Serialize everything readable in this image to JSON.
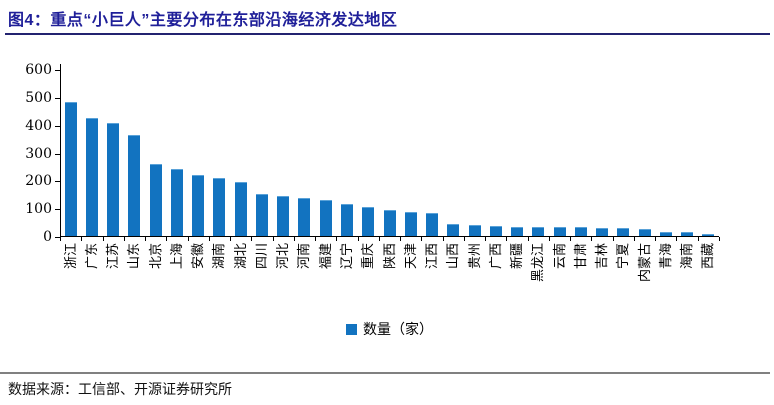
{
  "header": {
    "title": "图4：重点“小巨人”主要分布在东部沿海经济发达地区",
    "accent_color": "#1f1f99"
  },
  "chart_data": {
    "type": "bar",
    "title": "重点“小巨人”主要分布在东部沿海经济发达地区",
    "categories": [
      "浙江",
      "广东",
      "江苏",
      "山东",
      "北京",
      "上海",
      "安徽",
      "湖南",
      "湖北",
      "四川",
      "河北",
      "河南",
      "福建",
      "辽宁",
      "重庆",
      "陕西",
      "天津",
      "江西",
      "山西",
      "贵州",
      "广西",
      "新疆",
      "黑龙江",
      "云南",
      "甘肃",
      "吉林",
      "宁夏",
      "内蒙古",
      "青海",
      "海南",
      "西藏"
    ],
    "values": [
      480,
      421,
      403,
      361,
      257,
      236,
      215,
      206,
      192,
      148,
      139,
      132,
      126,
      110,
      100,
      91,
      84,
      79,
      40,
      36,
      31,
      30,
      30,
      29,
      28,
      26,
      24,
      20,
      12,
      9,
      2
    ],
    "xlabel": "",
    "ylabel": "",
    "ylim": [
      0,
      600
    ],
    "y_ticks": [
      0,
      100,
      200,
      300,
      400,
      500,
      600
    ],
    "grid": "off",
    "legend_position": "bottom-center",
    "bar_color": "#1273c0"
  },
  "legend": {
    "label": "数量（家）"
  },
  "footer": {
    "source": "数据来源：工信部、开源证券研究所"
  }
}
